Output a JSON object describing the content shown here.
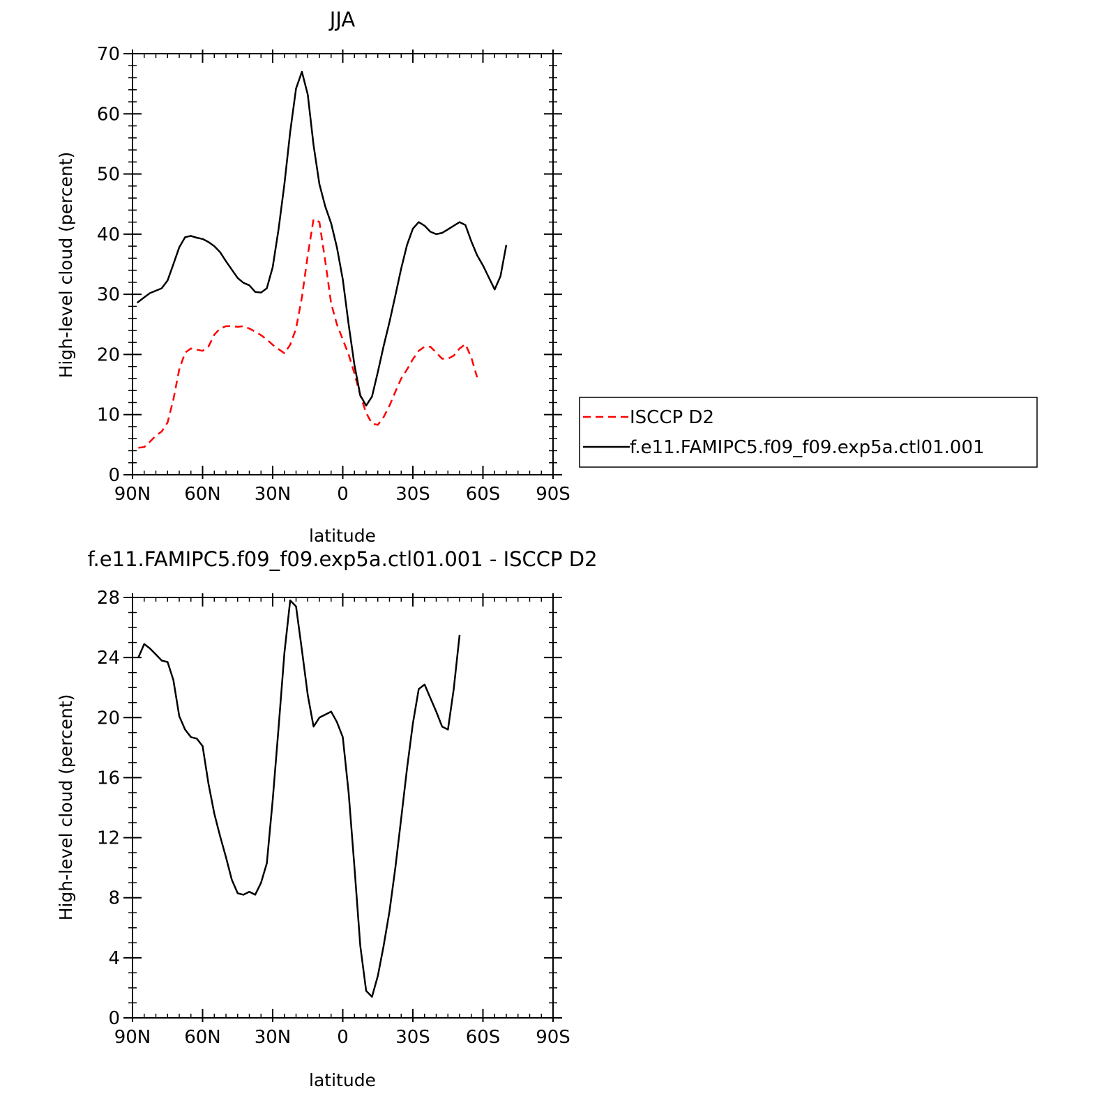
{
  "chart_data": [
    {
      "type": "line",
      "title": "JJA",
      "xlabel": "latitude",
      "ylabel": "High-level cloud (percent)",
      "x_tick_labels": [
        "90N",
        "60N",
        "30N",
        "0",
        "30S",
        "60S",
        "90S"
      ],
      "x_tick_values": [
        90,
        60,
        30,
        0,
        -30,
        -60,
        -90
      ],
      "xlim": [
        90,
        -90
      ],
      "ylim": [
        0,
        70
      ],
      "y_ticks": [
        0,
        10,
        20,
        30,
        40,
        50,
        60,
        70
      ],
      "grid": false,
      "legend_position": "right",
      "series": [
        {
          "name": "ISCCP D2",
          "color": "#ff0000",
          "style": "dashed",
          "points": [
            [
              87.5,
              4.5
            ],
            [
              85,
              4.6
            ],
            [
              82.5,
              5.5
            ],
            [
              80,
              6.5
            ],
            [
              77.5,
              7.2
            ],
            [
              75,
              8.7
            ],
            [
              72.5,
              12.5
            ],
            [
              70,
              17.5
            ],
            [
              67.5,
              20.3
            ],
            [
              65,
              21.0
            ],
            [
              62.5,
              20.8
            ],
            [
              60,
              20.6
            ],
            [
              57.5,
              21.3
            ],
            [
              55,
              23.3
            ],
            [
              52.5,
              24.3
            ],
            [
              50,
              24.7
            ],
            [
              47.5,
              24.7
            ],
            [
              45,
              24.6
            ],
            [
              42.5,
              24.7
            ],
            [
              40,
              24.3
            ],
            [
              37.5,
              23.8
            ],
            [
              35,
              23.2
            ],
            [
              32.5,
              22.5
            ],
            [
              30,
              21.6
            ],
            [
              27.5,
              20.9
            ],
            [
              25,
              20.2
            ],
            [
              22.5,
              21.6
            ],
            [
              20,
              24.3
            ],
            [
              17.5,
              29.5
            ],
            [
              15,
              36.5
            ],
            [
              12.5,
              42.5
            ],
            [
              10,
              42.0
            ],
            [
              7.5,
              35.5
            ],
            [
              5,
              28.5
            ],
            [
              2.5,
              25.0
            ],
            [
              0,
              22.5
            ],
            [
              -2.5,
              20.0
            ],
            [
              -5,
              16.8
            ],
            [
              -7.5,
              13.2
            ],
            [
              -10,
              10.3
            ],
            [
              -12.5,
              8.5
            ],
            [
              -15,
              8.3
            ],
            [
              -17.5,
              9.6
            ],
            [
              -20,
              11.5
            ],
            [
              -22.5,
              13.8
            ],
            [
              -25,
              16.0
            ],
            [
              -27.5,
              17.5
            ],
            [
              -30,
              19.2
            ],
            [
              -32.5,
              20.6
            ],
            [
              -35,
              21.3
            ],
            [
              -37.5,
              21.3
            ],
            [
              -40,
              20.3
            ],
            [
              -42.5,
              19.3
            ],
            [
              -45,
              19.3
            ],
            [
              -47.5,
              19.8
            ],
            [
              -50,
              21.0
            ],
            [
              -52.5,
              21.7
            ],
            [
              -55,
              19.5
            ],
            [
              -57.5,
              16.2
            ]
          ]
        },
        {
          "name": "f.e11.FAMIPC5.f09_f09.exp5a.ctl01.001",
          "color": "#000000",
          "style": "solid",
          "points": [
            [
              88,
              28.6
            ],
            [
              85,
              29.5
            ],
            [
              82.5,
              30.2
            ],
            [
              80,
              30.6
            ],
            [
              77.5,
              31.0
            ],
            [
              75,
              32.3
            ],
            [
              72.5,
              35.0
            ],
            [
              70,
              37.8
            ],
            [
              67.5,
              39.5
            ],
            [
              65,
              39.7
            ],
            [
              62.5,
              39.4
            ],
            [
              60,
              39.2
            ],
            [
              57.5,
              38.7
            ],
            [
              55,
              38.0
            ],
            [
              52.5,
              37.0
            ],
            [
              50,
              35.5
            ],
            [
              47.5,
              34.1
            ],
            [
              45,
              32.7
            ],
            [
              42.5,
              31.9
            ],
            [
              40,
              31.5
            ],
            [
              37.5,
              30.4
            ],
            [
              35,
              30.3
            ],
            [
              32.5,
              31.0
            ],
            [
              30,
              34.5
            ],
            [
              27.5,
              40.8
            ],
            [
              25,
              48.3
            ],
            [
              22.5,
              57.0
            ],
            [
              20,
              64.2
            ],
            [
              17.5,
              67.0
            ],
            [
              15,
              63.2
            ],
            [
              12.5,
              54.8
            ],
            [
              10,
              48.3
            ],
            [
              7.5,
              44.6
            ],
            [
              5,
              41.8
            ],
            [
              2.5,
              37.8
            ],
            [
              0,
              32.5
            ],
            [
              -2.5,
              25.0
            ],
            [
              -5,
              18.2
            ],
            [
              -7.5,
              13.2
            ],
            [
              -10,
              11.5
            ],
            [
              -12.5,
              13.0
            ],
            [
              -15,
              17.1
            ],
            [
              -17.5,
              21.4
            ],
            [
              -20,
              25.4
            ],
            [
              -22.5,
              29.8
            ],
            [
              -25,
              34.3
            ],
            [
              -27.5,
              38.2
            ],
            [
              -30,
              40.9
            ],
            [
              -32.5,
              42.0
            ],
            [
              -35,
              41.4
            ],
            [
              -37.5,
              40.4
            ],
            [
              -40,
              40.0
            ],
            [
              -42.5,
              40.2
            ],
            [
              -45,
              40.8
            ],
            [
              -47.5,
              41.4
            ],
            [
              -50,
              42.0
            ],
            [
              -52.5,
              41.5
            ],
            [
              -55,
              38.8
            ],
            [
              -57.5,
              36.5
            ],
            [
              -60,
              34.8
            ],
            [
              -62.5,
              32.8
            ],
            [
              -65,
              30.8
            ],
            [
              -67.5,
              33.0
            ],
            [
              -70,
              38.2
            ]
          ]
        }
      ]
    },
    {
      "type": "line",
      "title": "f.e11.FAMIPC5.f09_f09.exp5a.ctl01.001 - ISCCP D2",
      "xlabel": "latitude",
      "ylabel": "High-level cloud (percent)",
      "x_tick_labels": [
        "90N",
        "60N",
        "30N",
        "0",
        "30S",
        "60S",
        "90S"
      ],
      "x_tick_values": [
        90,
        60,
        30,
        0,
        -30,
        -60,
        -90
      ],
      "xlim": [
        90,
        -90
      ],
      "ylim": [
        0,
        28
      ],
      "y_ticks": [
        0,
        4,
        8,
        12,
        16,
        20,
        24,
        28
      ],
      "grid": false,
      "series": [
        {
          "color": "#000000",
          "style": "solid",
          "points": [
            [
              87.5,
              24.0
            ],
            [
              85,
              24.9
            ],
            [
              82.5,
              24.6
            ],
            [
              80,
              24.2
            ],
            [
              77.5,
              23.8
            ],
            [
              75,
              23.7
            ],
            [
              72.5,
              22.5
            ],
            [
              70,
              20.1
            ],
            [
              67.5,
              19.2
            ],
            [
              65,
              18.7
            ],
            [
              62.5,
              18.6
            ],
            [
              60,
              18.1
            ],
            [
              57.5,
              15.6
            ],
            [
              55,
              13.6
            ],
            [
              52.5,
              12.1
            ],
            [
              50,
              10.7
            ],
            [
              47.5,
              9.2
            ],
            [
              45,
              8.3
            ],
            [
              42.5,
              8.2
            ],
            [
              40,
              8.4
            ],
            [
              37.5,
              8.2
            ],
            [
              35,
              9.0
            ],
            [
              32.5,
              10.3
            ],
            [
              30,
              14.5
            ],
            [
              27.5,
              19.3
            ],
            [
              25,
              24.3
            ],
            [
              22.5,
              27.8
            ],
            [
              20,
              27.4
            ],
            [
              17.5,
              24.5
            ],
            [
              15,
              21.5
            ],
            [
              12.5,
              19.4
            ],
            [
              10,
              20.0
            ],
            [
              7.5,
              20.2
            ],
            [
              5,
              20.4
            ],
            [
              2.5,
              19.7
            ],
            [
              0,
              18.7
            ],
            [
              -2.5,
              15.0
            ],
            [
              -5,
              10.0
            ],
            [
              -7.5,
              4.8
            ],
            [
              -10,
              1.8
            ],
            [
              -12.5,
              1.4
            ],
            [
              -15,
              2.8
            ],
            [
              -17.5,
              4.8
            ],
            [
              -20,
              7.1
            ],
            [
              -22.5,
              10.0
            ],
            [
              -25,
              13.3
            ],
            [
              -27.5,
              16.6
            ],
            [
              -30,
              19.6
            ],
            [
              -32.5,
              21.9
            ],
            [
              -35,
              22.2
            ],
            [
              -37.5,
              21.3
            ],
            [
              -40,
              20.4
            ],
            [
              -42.5,
              19.4
            ],
            [
              -45,
              19.2
            ],
            [
              -47.5,
              21.9
            ],
            [
              -50,
              25.5
            ]
          ]
        }
      ]
    }
  ]
}
